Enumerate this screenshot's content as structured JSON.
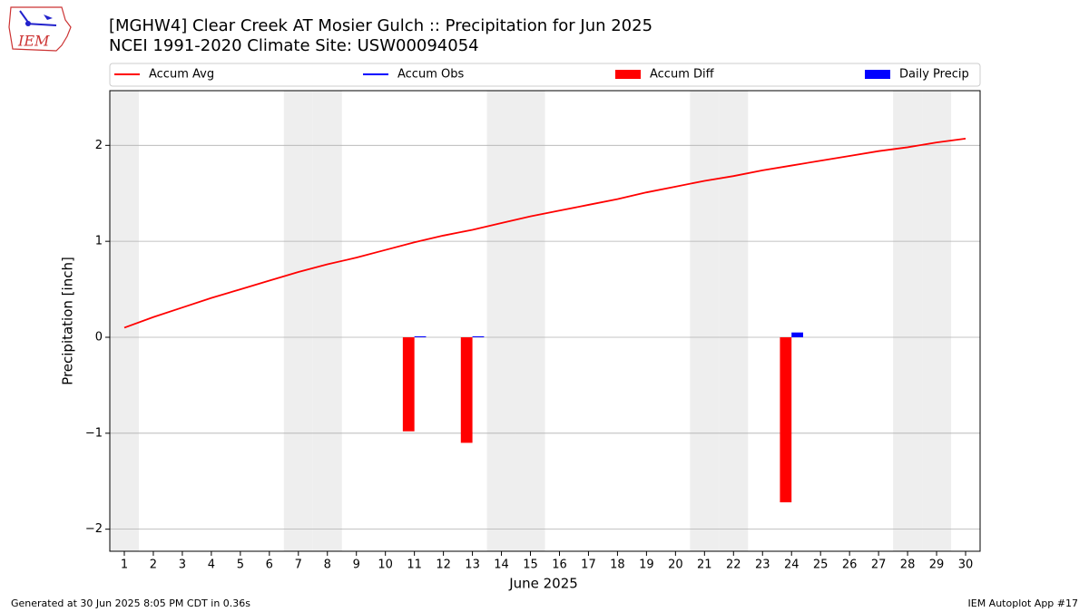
{
  "logo_text": "IEM",
  "footer": {
    "left": "Generated at 30 Jun 2025 8:05 PM CDT in 0.36s",
    "right": "IEM Autoplot App #17"
  },
  "chart_data": {
    "type": "bar",
    "title": "[MGHW4] Clear Creek  AT Mosier Gulch :: Precipitation for Jun 2025",
    "subtitle": "NCEI 1991-2020 Climate Site: USW00094054",
    "xlabel": "June 2025",
    "ylabel": "Precipitation [inch]",
    "x": [
      1,
      2,
      3,
      4,
      5,
      6,
      7,
      8,
      9,
      10,
      11,
      12,
      13,
      14,
      15,
      16,
      17,
      18,
      19,
      20,
      21,
      22,
      23,
      24,
      25,
      26,
      27,
      28,
      29,
      30
    ],
    "xlim": [
      0.5,
      30.5
    ],
    "ylim": [
      -2.23,
      2.57
    ],
    "yticks": [
      {
        "value": -2,
        "label": "−2"
      },
      {
        "value": -1,
        "label": "−1"
      },
      0,
      1,
      2
    ],
    "grid": true,
    "series": [
      {
        "name": "Accum Avg",
        "type": "line",
        "color": "#ff0000",
        "values": [
          0.1,
          0.21,
          0.31,
          0.41,
          0.5,
          0.59,
          0.68,
          0.76,
          0.83,
          0.91,
          0.99,
          1.06,
          1.12,
          1.19,
          1.26,
          1.32,
          1.38,
          1.44,
          1.51,
          1.57,
          1.63,
          1.68,
          1.74,
          1.79,
          1.84,
          1.89,
          1.94,
          1.98,
          2.03,
          2.07
        ]
      },
      {
        "name": "Accum Obs",
        "type": "line",
        "color": "#0000ff",
        "values": [
          null,
          null,
          null,
          null,
          null,
          null,
          null,
          null,
          null,
          null,
          null,
          null,
          null,
          null,
          null,
          null,
          null,
          null,
          null,
          null,
          null,
          null,
          null,
          null,
          null,
          null,
          null,
          null,
          null,
          null
        ]
      },
      {
        "name": "Accum Diff",
        "type": "bar",
        "color": "#ff0000",
        "values": [
          null,
          null,
          null,
          null,
          null,
          null,
          null,
          null,
          null,
          null,
          -0.98,
          null,
          -1.1,
          null,
          null,
          null,
          null,
          null,
          null,
          null,
          null,
          null,
          null,
          -1.72,
          null,
          null,
          null,
          null,
          null,
          null
        ]
      },
      {
        "name": "Daily Precip",
        "type": "bar",
        "color": "#0000ff",
        "values": [
          null,
          null,
          null,
          null,
          null,
          null,
          null,
          null,
          null,
          null,
          0.01,
          null,
          0.01,
          null,
          null,
          null,
          null,
          null,
          null,
          null,
          null,
          null,
          null,
          0.05,
          null,
          null,
          null,
          null,
          null,
          null
        ]
      }
    ]
  }
}
